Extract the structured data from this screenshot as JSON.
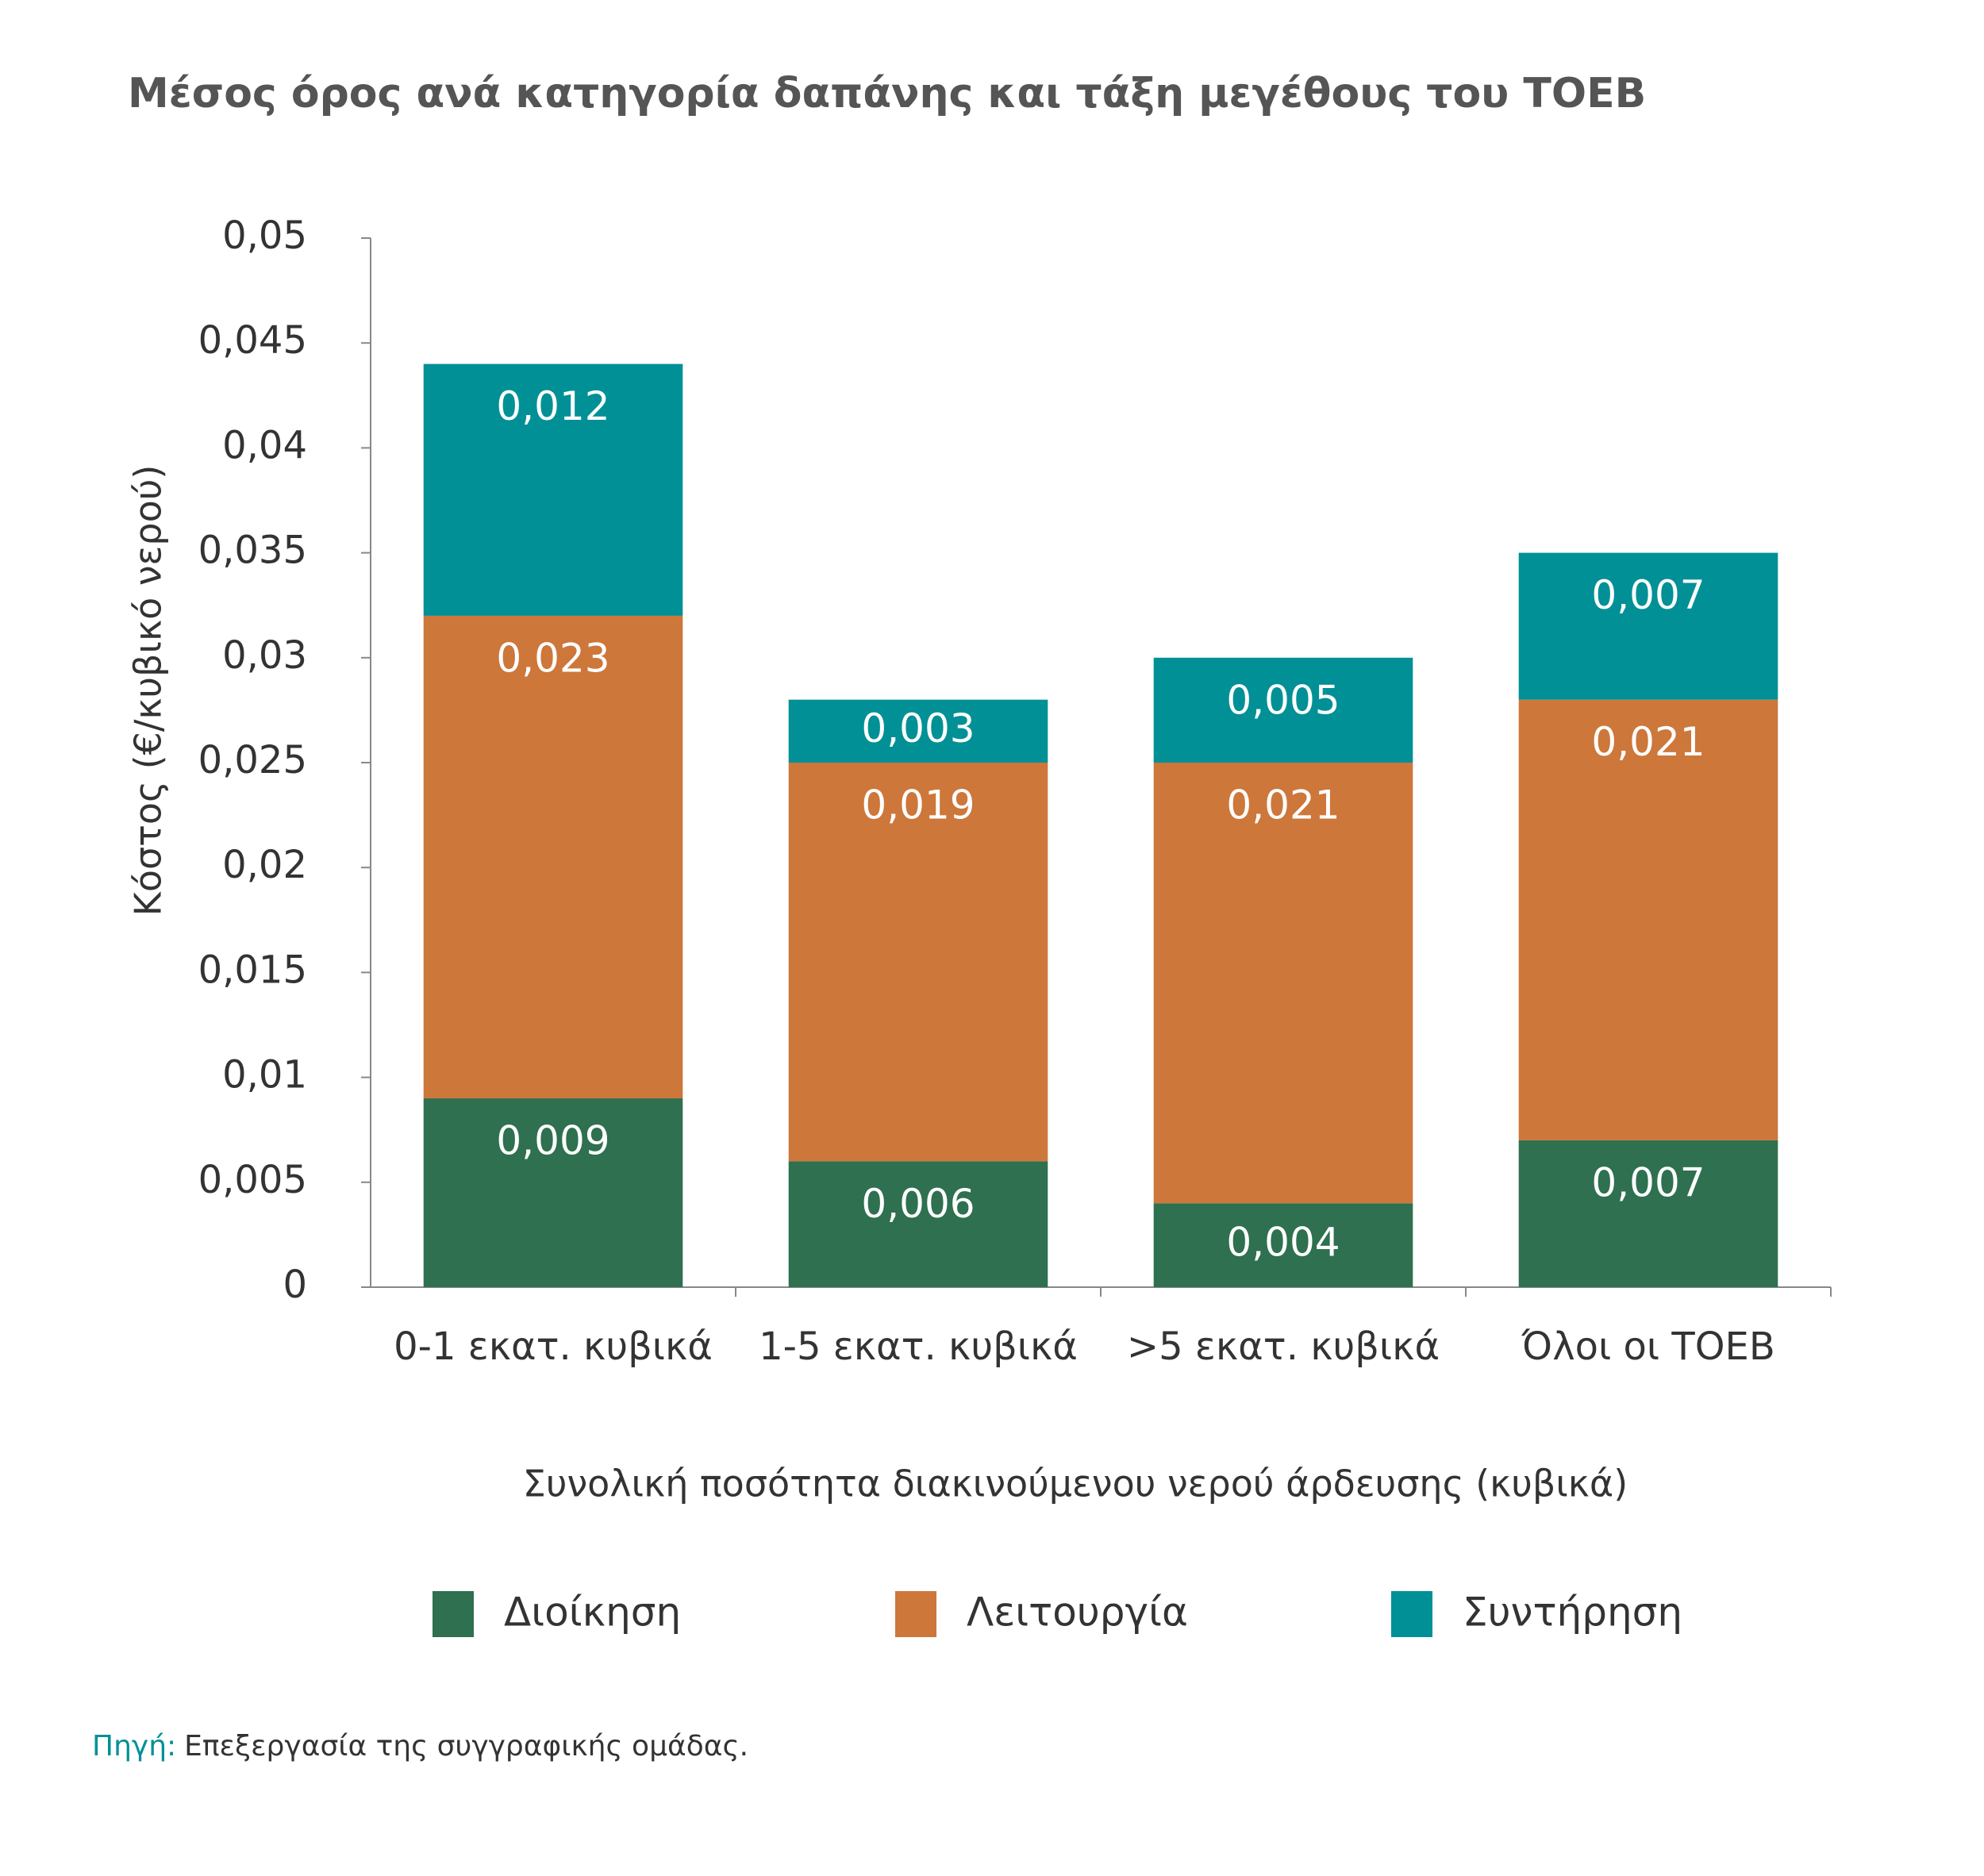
{
  "chart_data": {
    "type": "stacked_bar",
    "title": "Μέσος όρος ανά κατηγορία δαπάνης και τάξη μεγέθους του ΤΟΕΒ",
    "y_label": "Κόστος (€/κυβικό νερού)",
    "x_label": "Συνολική ποσότητα διακινούμενου νερού άρδευσης (κυβικά)",
    "categories": [
      "0-1 εκατ. κυβικά",
      "1-5 εκατ. κυβικά",
      ">5 εκατ. κυβικά",
      "Όλοι οι ΤΟΕΒ"
    ],
    "series": [
      {
        "name": "Διοίκηση",
        "color": "#2e7050",
        "values": [
          0.009,
          0.006,
          0.004,
          0.007
        ],
        "value_labels": [
          "0,009",
          "0,006",
          "0,004",
          "0,007"
        ]
      },
      {
        "name": "Λειτουργία",
        "color": "#cd773b",
        "values": [
          0.023,
          0.019,
          0.021,
          0.021
        ],
        "value_labels": [
          "0,023",
          "0,019",
          "0,021",
          "0,021"
        ]
      },
      {
        "name": "Συντήρηση",
        "color": "#009096",
        "values": [
          0.012,
          0.003,
          0.005,
          0.007
        ],
        "value_labels": [
          "0,012",
          "0,003",
          "0,005",
          "0,007"
        ]
      }
    ],
    "ylim": [
      0,
      0.05
    ],
    "yticks": [
      0,
      {
        "value": 0.005,
        "label": "0,005"
      },
      {
        "value": 0.01,
        "label": "0,01"
      },
      {
        "value": 0.015,
        "label": "0,015"
      },
      {
        "value": 0.02,
        "label": "0,02"
      },
      {
        "value": 0.025,
        "label": "0,025"
      },
      {
        "value": 0.03,
        "label": "0,03"
      },
      {
        "value": 0.035,
        "label": "0,035"
      },
      {
        "value": 0.04,
        "label": "0,04"
      },
      {
        "value": 0.045,
        "label": "0,045"
      },
      {
        "value": 0.05,
        "label": "0,05"
      }
    ],
    "legend": "bottom",
    "source_label": "Πηγή:",
    "source_text": "Επεξεργασία της συγγραφικής ομάδας."
  }
}
